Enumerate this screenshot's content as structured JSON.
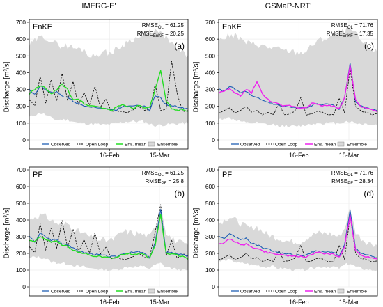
{
  "figure": {
    "column_titles": [
      "IMERG-E'",
      "GSMaP-NRT'"
    ],
    "colors": {
      "observed": "#1f5fb4",
      "open_loop": "#000000",
      "ensemble": "#d9d9d9",
      "ens_mean_imerg": "#22dd22",
      "ens_mean_gsmap": "#ee22ee"
    }
  },
  "chart_data": [
    {
      "type": "line",
      "panel_letter": "(a)",
      "method": "EnKF",
      "product": "IMERG-E'",
      "ylabel": "Discharge [m³/s]",
      "ylim": [
        0,
        700
      ],
      "yticks": [
        "0",
        "100",
        "200",
        "300",
        "400",
        "500",
        "600",
        "700"
      ],
      "xticks": [
        {
          "label": "16-Feb",
          "day": 46
        },
        {
          "label": "15-Mar",
          "day": 74
        }
      ],
      "xlabels_shown": true,
      "x_range_days": [
        1,
        90
      ],
      "grid": true,
      "legend": [
        "Observed",
        "Open Loop",
        "Ens. mean",
        "Ensemble"
      ],
      "legend_position": "bottom-center",
      "stats": [
        {
          "label": "RMSE",
          "sub": "OL",
          "value": "61.25"
        },
        {
          "label": "RMSE",
          "sub": "EnKF",
          "value": "20.25"
        }
      ],
      "series": [
        {
          "name": "Ensemble",
          "kind": "band",
          "lower": [
            135,
            150,
            160,
            150,
            130,
            120,
            120,
            120,
            110,
            100,
            100,
            95,
            95,
            90,
            90,
            95,
            100,
            105,
            110,
            110,
            110,
            110,
            95,
            85,
            90,
            90,
            95,
            95,
            100,
            100
          ],
          "upper": [
            560,
            590,
            610,
            610,
            590,
            570,
            560,
            560,
            550,
            540,
            540,
            500,
            500,
            520,
            520,
            520,
            540,
            560,
            590,
            600,
            610,
            620,
            640,
            650,
            630,
            610,
            570,
            540,
            520,
            500
          ]
        },
        {
          "name": "Open Loop",
          "kind": "dashed",
          "values": [
            240,
            205,
            380,
            220,
            355,
            230,
            395,
            235,
            345,
            210,
            280,
            205,
            320,
            195,
            240,
            170,
            175,
            165,
            165,
            180,
            200,
            175,
            180,
            330,
            175,
            185,
            470,
            280,
            170,
            175
          ]
        },
        {
          "name": "Observed",
          "kind": "solid",
          "values": [
            300,
            270,
            320,
            300,
            280,
            285,
            260,
            255,
            230,
            215,
            205,
            200,
            195,
            190,
            185,
            180,
            180,
            200,
            205,
            205,
            210,
            200,
            175,
            265,
            250,
            210,
            205,
            200,
            190,
            185
          ]
        },
        {
          "name": "Ens. mean",
          "kind": "solid",
          "values": [
            275,
            300,
            320,
            310,
            270,
            300,
            330,
            300,
            240,
            245,
            215,
            205,
            200,
            195,
            185,
            175,
            195,
            210,
            200,
            190,
            205,
            195,
            190,
            300,
            410,
            230,
            185,
            175,
            185,
            170
          ]
        }
      ]
    },
    {
      "type": "line",
      "panel_letter": "(c)",
      "method": "EnKF",
      "product": "GSMaP-NRT'",
      "ylabel": "Discharge [m³/s]",
      "ylim": [
        0,
        700
      ],
      "yticks": [
        "0",
        "100",
        "200",
        "300",
        "400",
        "500",
        "600",
        "700"
      ],
      "xticks": [
        {
          "label": "16-Feb",
          "day": 46
        },
        {
          "label": "15-Mar",
          "day": 74
        }
      ],
      "xlabels_shown": true,
      "x_range_days": [
        1,
        90
      ],
      "grid": true,
      "legend": [
        "Observed",
        "Open Loop",
        "Ens. mean",
        "Ensemble"
      ],
      "legend_position": "bottom-center",
      "stats": [
        {
          "label": "RMSE",
          "sub": "OL",
          "value": "71.76"
        },
        {
          "label": "RMSE",
          "sub": "EnKF",
          "value": "17.35"
        }
      ],
      "series": [
        {
          "name": "Ensemble",
          "kind": "band",
          "lower": [
            120,
            130,
            130,
            120,
            110,
            100,
            100,
            100,
            95,
            90,
            90,
            85,
            85,
            80,
            80,
            85,
            90,
            95,
            100,
            100,
            100,
            100,
            100,
            110,
            110,
            100,
            95,
            95,
            90,
            90
          ],
          "upper": [
            590,
            610,
            620,
            620,
            600,
            580,
            570,
            570,
            560,
            550,
            550,
            540,
            530,
            530,
            520,
            520,
            530,
            560,
            590,
            600,
            610,
            620,
            640,
            650,
            660,
            630,
            590,
            560,
            540,
            520
          ]
        },
        {
          "name": "Open Loop",
          "kind": "dashed",
          "values": [
            160,
            175,
            190,
            160,
            175,
            200,
            165,
            175,
            150,
            165,
            150,
            215,
            150,
            155,
            175,
            250,
            150,
            155,
            170,
            165,
            150,
            150,
            250,
            165,
            425,
            200,
            170,
            165,
            150,
            155
          ]
        },
        {
          "name": "Observed",
          "kind": "solid",
          "values": [
            300,
            290,
            320,
            300,
            280,
            290,
            260,
            250,
            235,
            225,
            215,
            205,
            200,
            195,
            190,
            190,
            190,
            205,
            215,
            210,
            210,
            205,
            185,
            250,
            460,
            230,
            200,
            190,
            185,
            175
          ]
        },
        {
          "name": "Ens. mean",
          "kind": "solid",
          "values": [
            280,
            290,
            300,
            280,
            260,
            300,
            280,
            350,
            270,
            240,
            225,
            210,
            200,
            205,
            195,
            190,
            195,
            220,
            210,
            205,
            205,
            200,
            185,
            250,
            445,
            240,
            200,
            190,
            180,
            165
          ]
        }
      ]
    },
    {
      "type": "line",
      "panel_letter": "(b)",
      "method": "PF",
      "product": "IMERG-E'",
      "ylabel": "Discharge [m³/s]",
      "ylim": [
        0,
        700
      ],
      "yticks": [
        "0",
        "100",
        "200",
        "300",
        "400",
        "500",
        "600",
        "700"
      ],
      "xticks": [
        {
          "label": "16-Feb",
          "day": 46
        },
        {
          "label": "15-Mar",
          "day": 74
        }
      ],
      "xlabels_shown": true,
      "x_range_days": [
        1,
        90
      ],
      "grid": true,
      "legend": [
        "Observed",
        "Open Loop",
        "Ens. mean",
        "Ensemble"
      ],
      "legend_position": "bottom-center",
      "stats": [
        {
          "label": "RMSE",
          "sub": "OL",
          "value": "61.25"
        },
        {
          "label": "RMSE",
          "sub": "PF",
          "value": "25.8"
        }
      ],
      "series": [
        {
          "name": "Ensemble",
          "kind": "band",
          "lower": [
            170,
            180,
            175,
            170,
            150,
            145,
            140,
            140,
            130,
            120,
            120,
            110,
            110,
            105,
            100,
            100,
            105,
            110,
            120,
            120,
            120,
            120,
            110,
            130,
            140,
            120,
            110,
            105,
            100,
            100
          ],
          "upper": [
            400,
            420,
            430,
            420,
            400,
            380,
            370,
            380,
            350,
            330,
            320,
            300,
            290,
            280,
            280,
            280,
            300,
            330,
            330,
            320,
            320,
            310,
            300,
            360,
            490,
            330,
            290,
            270,
            260,
            250
          ]
        },
        {
          "name": "Open Loop",
          "kind": "dashed",
          "values": [
            240,
            205,
            380,
            220,
            355,
            230,
            395,
            235,
            345,
            210,
            280,
            205,
            320,
            195,
            240,
            170,
            175,
            165,
            165,
            180,
            200,
            175,
            180,
            330,
            490,
            185,
            280,
            170,
            200,
            175
          ]
        },
        {
          "name": "Observed",
          "kind": "solid",
          "values": [
            300,
            270,
            320,
            300,
            280,
            285,
            260,
            255,
            230,
            215,
            205,
            200,
            195,
            190,
            185,
            180,
            180,
            200,
            205,
            205,
            210,
            200,
            175,
            265,
            460,
            210,
            205,
            200,
            190,
            185
          ]
        },
        {
          "name": "Ens. mean",
          "kind": "solid",
          "values": [
            280,
            270,
            300,
            285,
            270,
            275,
            250,
            245,
            220,
            205,
            200,
            190,
            185,
            180,
            175,
            170,
            175,
            195,
            200,
            195,
            200,
            190,
            170,
            250,
            430,
            200,
            195,
            190,
            180,
            165
          ]
        }
      ]
    },
    {
      "type": "line",
      "panel_letter": "(d)",
      "method": "PF",
      "product": "GSMaP-NRT'",
      "ylabel": "Discharge [m³/s]",
      "ylim": [
        0,
        700
      ],
      "yticks": [
        "0",
        "100",
        "200",
        "300",
        "400",
        "500",
        "600",
        "700"
      ],
      "xticks": [
        {
          "label": "16-Feb",
          "day": 46
        },
        {
          "label": "15-Mar",
          "day": 74
        }
      ],
      "xlabels_shown": true,
      "x_range_days": [
        1,
        90
      ],
      "grid": true,
      "legend": [
        "Observed",
        "Open Loop",
        "Ens. mean",
        "Ensemble"
      ],
      "legend_position": "bottom-center",
      "stats": [
        {
          "label": "RMSE",
          "sub": "OL",
          "value": "71.76"
        },
        {
          "label": "RMSE",
          "sub": "PF",
          "value": "28.34"
        }
      ],
      "series": [
        {
          "name": "Ensemble",
          "kind": "band",
          "lower": [
            150,
            160,
            160,
            150,
            140,
            140,
            130,
            130,
            120,
            120,
            120,
            110,
            110,
            105,
            100,
            100,
            105,
            110,
            120,
            120,
            120,
            120,
            110,
            130,
            140,
            120,
            110,
            105,
            100,
            100
          ],
          "upper": [
            380,
            400,
            420,
            400,
            380,
            360,
            350,
            360,
            330,
            310,
            300,
            290,
            280,
            270,
            270,
            270,
            290,
            310,
            320,
            320,
            320,
            310,
            300,
            350,
            470,
            330,
            290,
            270,
            260,
            250
          ]
        },
        {
          "name": "Open Loop",
          "kind": "dashed",
          "values": [
            160,
            175,
            190,
            160,
            175,
            200,
            165,
            175,
            150,
            165,
            150,
            215,
            150,
            155,
            175,
            250,
            150,
            155,
            170,
            165,
            150,
            150,
            250,
            165,
            425,
            200,
            170,
            165,
            150,
            155
          ]
        },
        {
          "name": "Observed",
          "kind": "solid",
          "values": [
            300,
            290,
            320,
            300,
            280,
            290,
            260,
            250,
            235,
            225,
            215,
            205,
            200,
            195,
            190,
            190,
            190,
            205,
            215,
            210,
            210,
            205,
            185,
            250,
            460,
            230,
            200,
            190,
            185,
            175
          ]
        },
        {
          "name": "Ens. mean",
          "kind": "solid",
          "values": [
            260,
            260,
            290,
            270,
            250,
            255,
            240,
            230,
            215,
            205,
            200,
            195,
            190,
            185,
            180,
            180,
            180,
            195,
            205,
            200,
            200,
            195,
            175,
            240,
            430,
            215,
            190,
            180,
            175,
            165
          ]
        }
      ]
    }
  ]
}
